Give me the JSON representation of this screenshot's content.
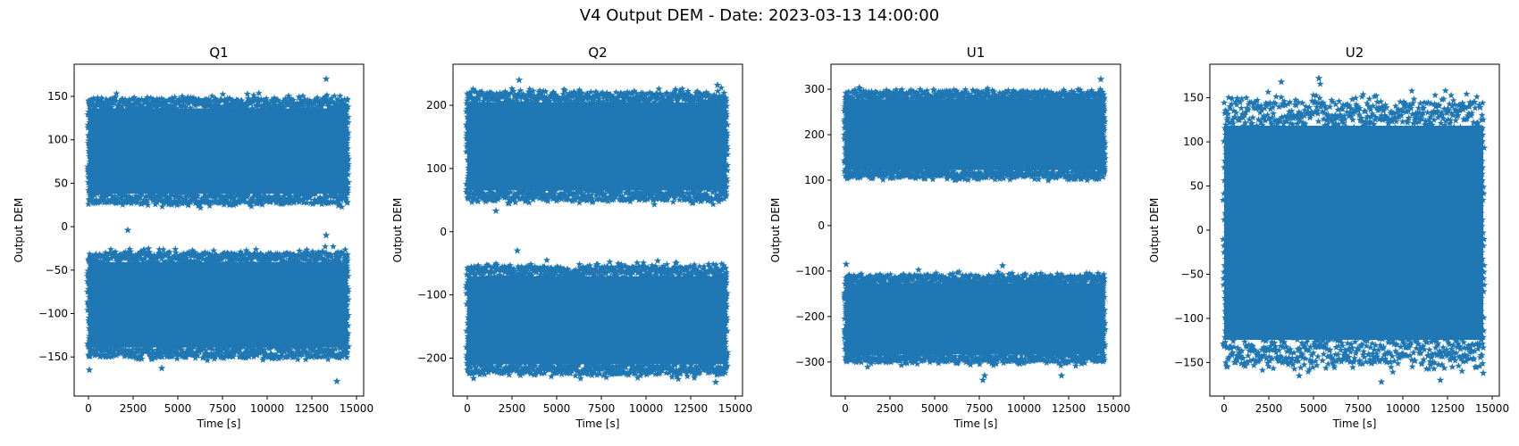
{
  "figure": {
    "suptitle": "V4 Output DEM - Date: 2023-03-13 14:00:00"
  },
  "colors": {
    "series": "#1f77b4",
    "axes": "#000000",
    "background": "#ffffff"
  },
  "chart_data": [
    {
      "type": "scatter",
      "title": "Q1",
      "xlabel": "Time [s]",
      "ylabel": "Output DEM",
      "marker": "star",
      "xlim": [
        -800,
        15400
      ],
      "ylim": [
        -195,
        187
      ],
      "xticks": [
        0,
        2500,
        5000,
        7500,
        10000,
        12500,
        15000
      ],
      "yticks": [
        -150,
        -100,
        -50,
        0,
        50,
        100,
        150
      ],
      "time_range": [
        0,
        14500
      ],
      "bands": [
        {
          "name": "upper",
          "center": 87,
          "half_width": 60
        },
        {
          "name": "lower",
          "center": -90,
          "half_width": 60
        }
      ],
      "outliers": [
        [
          2200,
          -4
        ],
        [
          13300,
          -10
        ],
        [
          13300,
          170
        ],
        [
          13900,
          -178
        ],
        [
          50,
          -165
        ],
        [
          4100,
          -163
        ]
      ]
    },
    {
      "type": "scatter",
      "title": "Q2",
      "xlabel": "Time [s]",
      "ylabel": "Output DEM",
      "marker": "star",
      "xlim": [
        -800,
        15400
      ],
      "ylim": [
        -260,
        265
      ],
      "xticks": [
        0,
        2500,
        5000,
        7500,
        10000,
        12500,
        15000
      ],
      "yticks": [
        -200,
        -100,
        0,
        100,
        200
      ],
      "time_range": [
        0,
        14500
      ],
      "bands": [
        {
          "name": "upper",
          "center": 135,
          "half_width": 85
        },
        {
          "name": "lower",
          "center": -140,
          "half_width": 85
        }
      ],
      "outliers": [
        [
          1600,
          33
        ],
        [
          2800,
          -30
        ],
        [
          2900,
          240
        ],
        [
          13900,
          -238
        ],
        [
          14000,
          232
        ],
        [
          350,
          -232
        ]
      ]
    },
    {
      "type": "scatter",
      "title": "U1",
      "xlabel": "Time [s]",
      "ylabel": "Output DEM",
      "marker": "star",
      "xlim": [
        -800,
        15400
      ],
      "ylim": [
        -375,
        355
      ],
      "xticks": [
        0,
        2500,
        5000,
        7500,
        10000,
        12500,
        15000
      ],
      "yticks": [
        -300,
        -200,
        -100,
        0,
        100,
        200,
        300
      ],
      "time_range": [
        0,
        14500
      ],
      "bands": [
        {
          "name": "upper",
          "center": 200,
          "half_width": 95
        },
        {
          "name": "lower",
          "center": -205,
          "half_width": 95
        }
      ],
      "outliers": [
        [
          7700,
          -340
        ],
        [
          7800,
          -330
        ],
        [
          14300,
          322
        ],
        [
          50,
          -85
        ],
        [
          8800,
          -88
        ],
        [
          12100,
          -330
        ]
      ]
    },
    {
      "type": "scatter",
      "title": "U2",
      "xlabel": "Time [s]",
      "ylabel": "Output DEM",
      "marker": "star",
      "xlim": [
        -800,
        15400
      ],
      "ylim": [
        -188,
        188
      ],
      "xticks": [
        0,
        2500,
        5000,
        7500,
        10000,
        12500,
        15000
      ],
      "yticks": [
        -150,
        -100,
        -50,
        0,
        50,
        100,
        150
      ],
      "time_range": [
        0,
        14500
      ],
      "bands": [
        {
          "name": "single",
          "center": -3,
          "half_width": 148
        }
      ],
      "outliers": [
        [
          5300,
          172
        ],
        [
          3200,
          168
        ],
        [
          8800,
          -172
        ],
        [
          12100,
          -170
        ],
        [
          14500,
          -162
        ],
        [
          4200,
          -165
        ]
      ]
    }
  ]
}
